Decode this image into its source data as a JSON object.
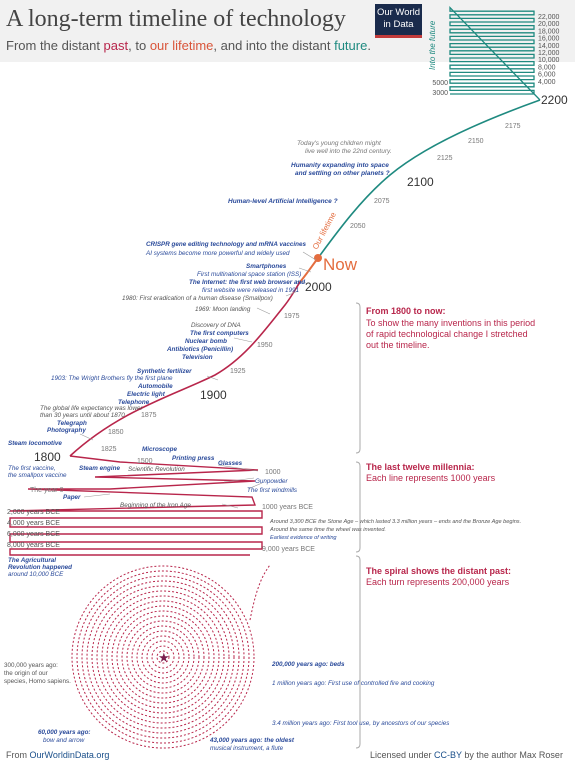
{
  "header": {
    "title": "A long-term timeline of technology",
    "subtitle_parts": [
      "From the distant ",
      "past",
      ", to ",
      "our lifetime",
      ", and into the distant ",
      "future",
      "."
    ],
    "logo_line1": "Our World",
    "logo_line2": "in Data"
  },
  "colors": {
    "past": "#b8264b",
    "lifetime": "#d9553a",
    "future": "#1f8a80",
    "event": "#2a4a9a",
    "text": "#555555"
  },
  "future_scale": [
    "22,000",
    "20,000",
    "18,000",
    "16,000",
    "14,000",
    "12,000",
    "10,000",
    "8,000",
    "6,000",
    "4,000"
  ],
  "future_side_labels": [
    "5000",
    "3000"
  ],
  "into_the_future_label": "Into the future",
  "year_markers": [
    {
      "label": "2200",
      "big": true
    },
    {
      "label": "2175"
    },
    {
      "label": "2150"
    },
    {
      "label": "2125"
    },
    {
      "label": "2100",
      "big": true
    },
    {
      "label": "2075"
    },
    {
      "label": "2050"
    },
    {
      "label": "2000",
      "big": true
    },
    {
      "label": "1975"
    },
    {
      "label": "1950"
    },
    {
      "label": "1925"
    },
    {
      "label": "1900",
      "big": true
    },
    {
      "label": "1875"
    },
    {
      "label": "1850"
    },
    {
      "label": "1825"
    },
    {
      "label": "1800",
      "big": true
    },
    {
      "label": "1500"
    },
    {
      "label": "1000"
    },
    {
      "label": "The year 0"
    },
    {
      "label": "1000 years BCE"
    },
    {
      "label": "2,000 years BCE"
    },
    {
      "label": "4,000 years BCE"
    },
    {
      "label": "6,000 years BCE"
    },
    {
      "label": "8,000 years BCE"
    },
    {
      "label": "9,000 years BCE"
    }
  ],
  "now_label": "Now",
  "our_lifetime_label": "Our lifetime",
  "future_notes": [
    {
      "text": "Today's young children might",
      "line2": "live well into the 22nd century."
    },
    {
      "text": "Humanity expanding into space",
      "line2": "and settling on other planets ?"
    },
    {
      "text": "Human-level Artificial Intelligence ?"
    }
  ],
  "events": [
    {
      "text": "CRISPR gene editing technology and mRNA vaccines"
    },
    {
      "text": "AI systems become more powerful and widely used"
    },
    {
      "text": "Smartphones"
    },
    {
      "text": "First multinational space station (ISS)"
    },
    {
      "text": "The Internet: the first web browser and"
    },
    {
      "text": "first website were released in 1991"
    },
    {
      "text": "1980: First eradication of a human disease (Smallpox)"
    },
    {
      "text": "1969: Moon landing"
    },
    {
      "text": "Discovery of DNA"
    },
    {
      "text": "The first computers"
    },
    {
      "text": "Nuclear bomb"
    },
    {
      "text": "Antibiotics (Penicillin)"
    },
    {
      "text": "Television"
    },
    {
      "text": "Synthetic fertilizer"
    },
    {
      "text": "1903: The Wright Brothers fly the first plane"
    },
    {
      "text": "Automobile"
    },
    {
      "text": "Electric light"
    },
    {
      "text": "Telephone"
    },
    {
      "text": "The global life expectancy was lower"
    },
    {
      "text": "than 30 years until about 1870"
    },
    {
      "text": "Telegraph"
    },
    {
      "text": "Photography"
    },
    {
      "text": "Steam locomotive"
    },
    {
      "text": "Microscope"
    },
    {
      "text": "Printing press"
    },
    {
      "text": "Glasses"
    },
    {
      "text": "The first vaccine,"
    },
    {
      "text": "the smallpox vaccine"
    },
    {
      "text": "Steam engine"
    },
    {
      "text": "Scientific Revolution"
    },
    {
      "text": "Gunpowder"
    },
    {
      "text": "The first windmills"
    },
    {
      "text": "Paper"
    },
    {
      "text": "Beginning of the Iron Age"
    },
    {
      "text": "Around 3,300 BCE the Stone Age – which lasted 3.3 million years – ends and the Bronze Age begins."
    },
    {
      "text": "Around the same time the wheel was invented."
    },
    {
      "text": "Earliest evidence of writing"
    },
    {
      "text": "The Agricultural"
    },
    {
      "text": "Revolution happened"
    },
    {
      "text": "around 10,000 BCE"
    },
    {
      "text": "200,000 years ago: beds"
    },
    {
      "text": "1 million years ago: First use of controlled fire and cooking"
    },
    {
      "text": "300,000 years ago:"
    },
    {
      "text": "the origin of our"
    },
    {
      "text": "species, Homo sapiens."
    },
    {
      "text": "3.4 million years ago: First tool use, by ancestors of our species"
    },
    {
      "text": "60,000 years ago:"
    },
    {
      "text": "bow and arrow"
    },
    {
      "text": "43,000 years ago: the oldest"
    },
    {
      "text": "musical instrument, a flute"
    }
  ],
  "explanations": [
    {
      "heading": "From 1800 to now:",
      "body": [
        "To show the many inventions in this period",
        "of rapid technological change I stretched",
        "out the timeline."
      ]
    },
    {
      "heading": "The last twelve millennia:",
      "body": [
        "Each line represents 1000 years"
      ]
    },
    {
      "heading": "The spiral shows the distant past:",
      "body": [
        "Each turn represents 200,000 years"
      ]
    }
  ],
  "footer": {
    "left_prefix": "From ",
    "left_link": "OurWorldinData.org",
    "right_prefix": "Licensed under ",
    "right_license": "CC-BY",
    "right_suffix": " by the author Max Roser"
  }
}
